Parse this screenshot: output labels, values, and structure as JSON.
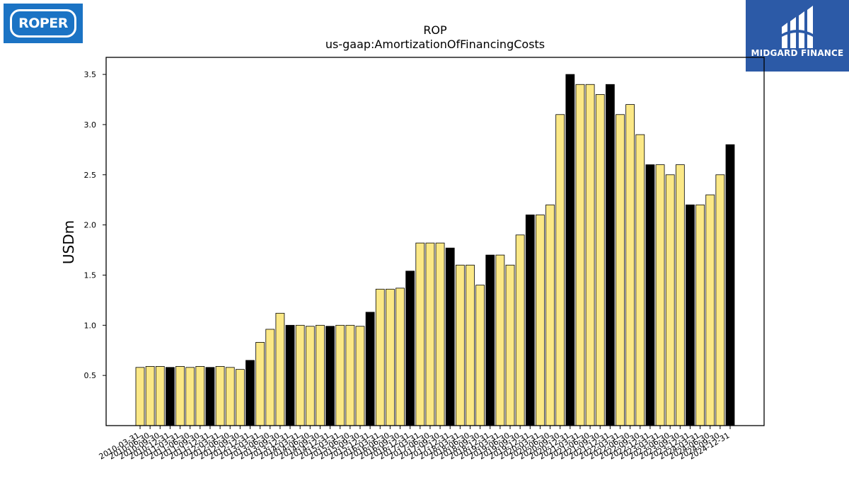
{
  "logos": {
    "left_text": "ROPER",
    "right_text": "MIDGARD FINANCE"
  },
  "chart_data": {
    "type": "bar",
    "title": "ROP",
    "subtitle": "us-gaap:AmortizationOfFinancingCosts",
    "ylabel": "USDm",
    "xlabel": "",
    "ylim": [
      0,
      3.67
    ],
    "yticks": [
      0.5,
      1.0,
      1.5,
      2.0,
      2.5,
      3.0,
      3.5
    ],
    "grid": false,
    "colors": {
      "quarter": "#fbe886",
      "year_end": "#000000"
    },
    "categories": [
      "2010-03-31",
      "2010-06-30",
      "2010-09-30",
      "2010-12-31",
      "2011-03-31",
      "2011-06-30",
      "2011-09-30",
      "2011-12-31",
      "2012-03-31",
      "2012-06-30",
      "2012-09-30",
      "2012-12-31",
      "2013-03-31",
      "2013-06-30",
      "2013-09-30",
      "2013-12-31",
      "2014-03-31",
      "2014-06-30",
      "2014-09-30",
      "2014-12-31",
      "2015-03-31",
      "2015-06-30",
      "2015-09-30",
      "2015-12-31",
      "2016-03-31",
      "2016-06-30",
      "2016-09-30",
      "2016-12-31",
      "2017-03-31",
      "2017-06-30",
      "2017-09-30",
      "2017-12-31",
      "2018-03-31",
      "2018-06-30",
      "2018-09-30",
      "2018-12-31",
      "2019-03-31",
      "2019-06-30",
      "2019-09-30",
      "2019-12-31",
      "2020-03-31",
      "2020-06-30",
      "2020-09-30",
      "2020-12-31",
      "2021-03-31",
      "2021-06-30",
      "2021-09-30",
      "2021-12-31",
      "2022-03-31",
      "2022-06-30",
      "2022-09-30",
      "2022-12-31",
      "2023-03-31",
      "2023-06-30",
      "2023-09-30",
      "2023-12-31",
      "2024-03-31",
      "2024-06-30",
      "2024-09-30",
      "2024-12-31"
    ],
    "values": [
      0.58,
      0.59,
      0.59,
      0.58,
      0.59,
      0.58,
      0.59,
      0.58,
      0.59,
      0.58,
      0.56,
      0.65,
      0.83,
      0.96,
      1.12,
      1.0,
      1.0,
      0.99,
      1.0,
      0.99,
      1.0,
      1.0,
      0.99,
      1.13,
      1.36,
      1.36,
      1.37,
      1.54,
      1.82,
      1.82,
      1.82,
      1.77,
      1.6,
      1.6,
      1.4,
      1.7,
      1.7,
      1.6,
      1.9,
      2.1,
      2.1,
      2.2,
      3.1,
      3.5,
      3.4,
      3.4,
      3.3,
      3.4,
      3.1,
      3.2,
      2.9,
      2.6,
      2.6,
      2.5,
      2.6,
      2.2,
      2.2,
      2.3,
      2.5,
      2.8
    ]
  }
}
